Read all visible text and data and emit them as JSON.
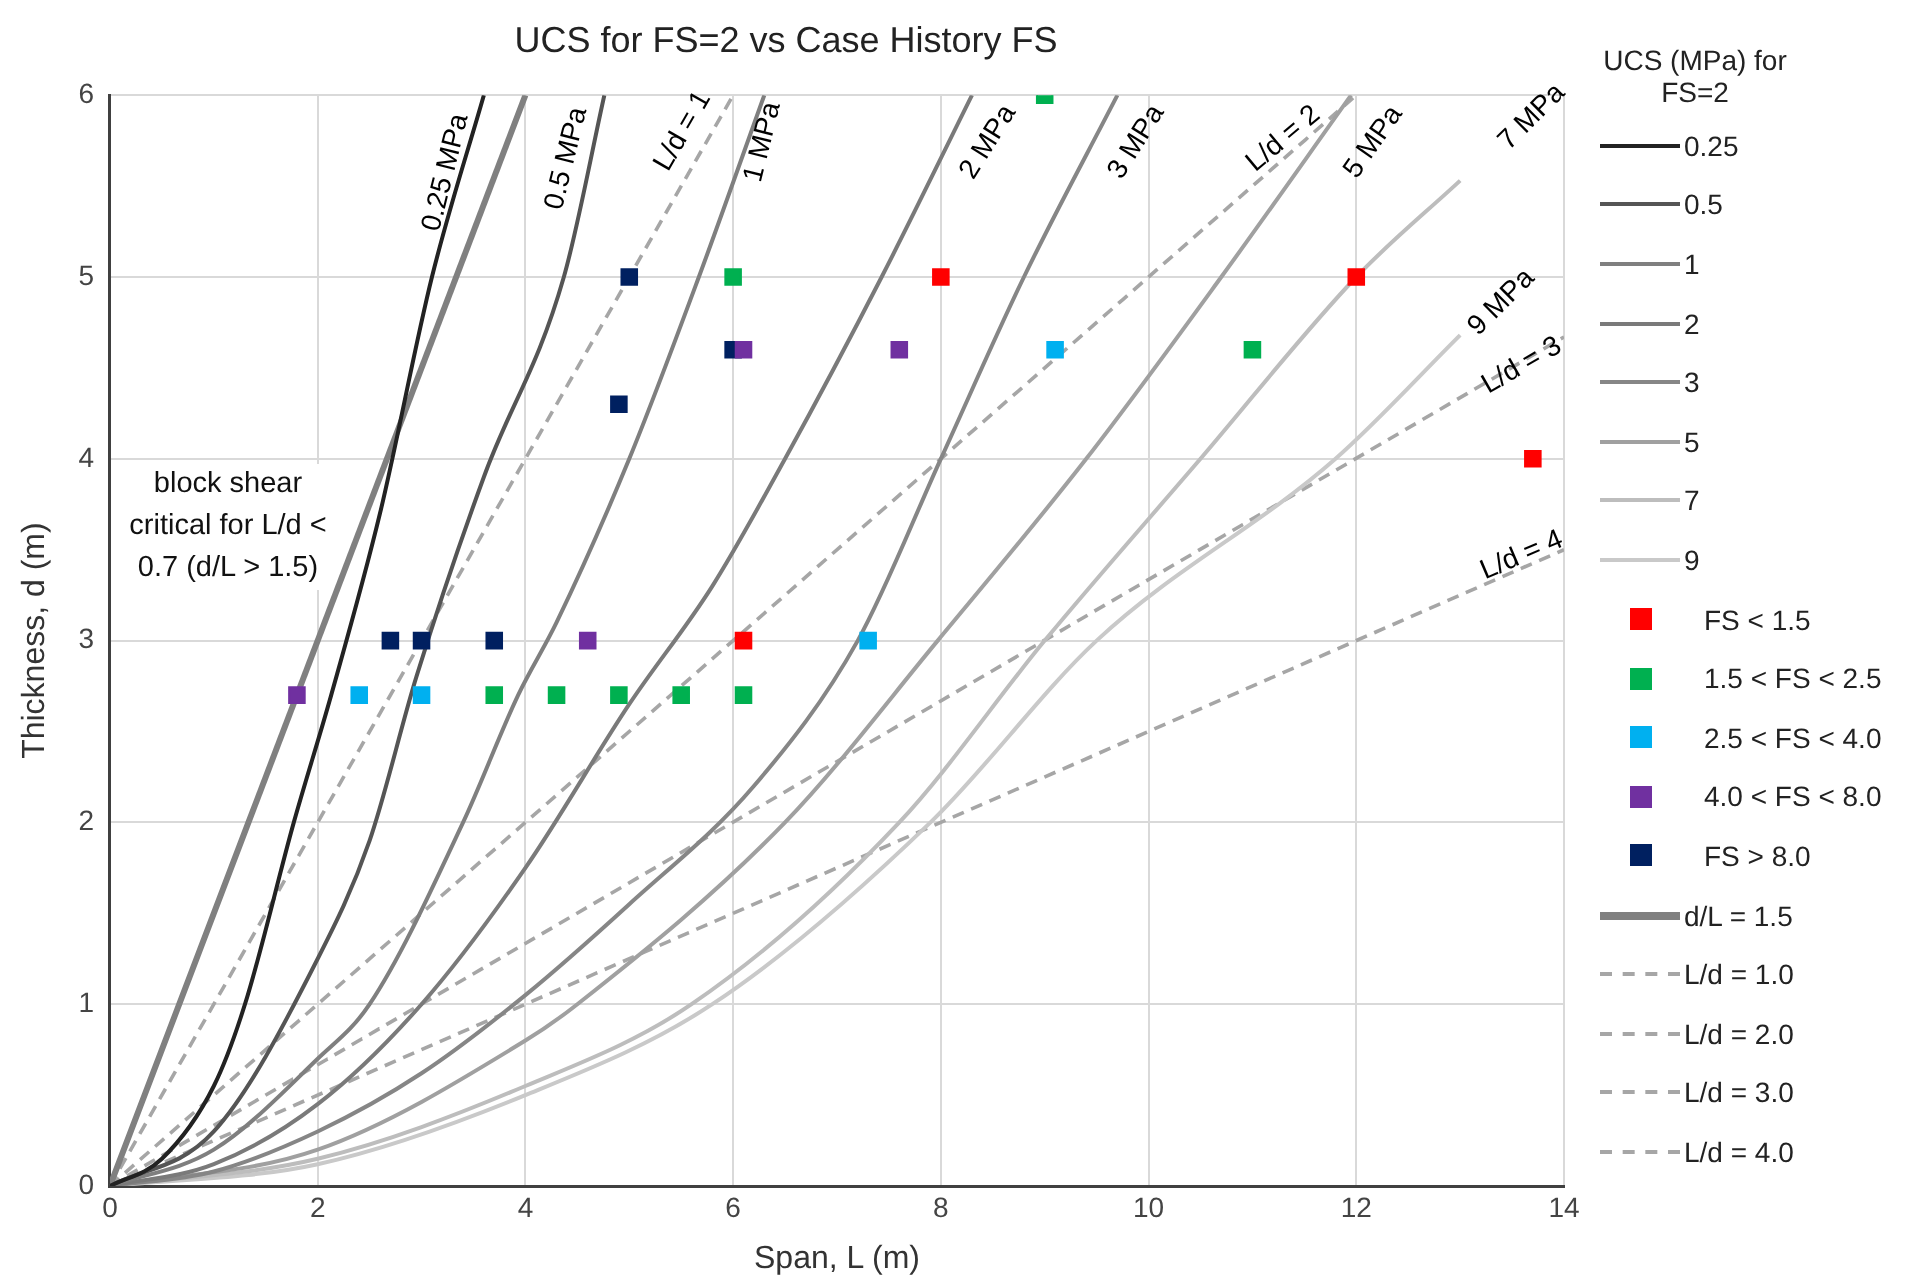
{
  "chart_data": {
    "type": "line",
    "title": "UCS for FS=2 vs Case History FS",
    "xlabel": "Span, L (m)",
    "ylabel": "Thickness, d (m)",
    "legend_title": "UCS (MPa) for FS=2",
    "legend": "right",
    "grid": true,
    "xlim": [
      0,
      14
    ],
    "xticks": [
      0,
      2,
      4,
      6,
      8,
      10,
      12,
      14
    ],
    "ylim": [
      0,
      6
    ],
    "yticks": [
      0,
      1,
      2,
      3,
      4,
      5,
      6
    ],
    "series": [
      {
        "name": "0.25",
        "color": "#222222",
        "line_style": "solid",
        "marker": "none",
        "x": [
          0,
          0.5,
          1,
          1.3,
          1.77,
          2.13,
          2.6,
          3.1,
          3.6
        ],
        "values": [
          0,
          0.15,
          0.55,
          1,
          2,
          2.7,
          3.7,
          5,
          6
        ]
      },
      {
        "name": "0.5",
        "color": "#555555",
        "line_style": "solid",
        "marker": "none",
        "x": [
          0,
          1,
          2,
          2.5,
          2.95,
          3.6,
          4.37,
          4.76
        ],
        "values": [
          0,
          0.3,
          1.25,
          1.9,
          2.8,
          3.9,
          5,
          6
        ]
      },
      {
        "name": "1",
        "color": "#7f7f7f",
        "line_style": "solid",
        "marker": "none",
        "x": [
          0,
          1,
          2,
          2.5,
          3.4,
          3.93,
          4.3,
          5,
          5.67,
          6.3
        ],
        "values": [
          0,
          0.2,
          0.7,
          1,
          2,
          2.7,
          3.1,
          4,
          5,
          6
        ]
      },
      {
        "name": "2",
        "color": "#7a7a7a",
        "line_style": "solid",
        "marker": "none",
        "x": [
          0,
          1,
          2,
          3,
          4,
          5,
          5.8,
          6.5,
          7.43,
          8.3
        ],
        "values": [
          0,
          0.12,
          0.45,
          1,
          1.75,
          2.65,
          3.3,
          4,
          5,
          6
        ]
      },
      {
        "name": "3",
        "color": "#868686",
        "line_style": "solid",
        "marker": "none",
        "x": [
          0,
          1,
          2,
          3,
          4,
          5,
          6.2,
          7.2,
          8,
          8.8,
          9.7
        ],
        "values": [
          0,
          0.08,
          0.3,
          0.62,
          1.05,
          1.55,
          2.2,
          3,
          4,
          5,
          6
        ]
      },
      {
        "name": "5",
        "color": "#a0a0a0",
        "line_style": "solid",
        "marker": "none",
        "x": [
          0,
          2,
          4,
          4.5,
          6.5,
          7.97,
          9.4,
          10.7,
          11.95
        ],
        "values": [
          0,
          0.2,
          0.8,
          1,
          2,
          3,
          4,
          5,
          6
        ]
      },
      {
        "name": "7",
        "color": "#bdbdbd",
        "line_style": "solid",
        "marker": "none",
        "x": [
          0,
          2,
          4,
          5.6,
          7.6,
          9,
          10.5,
          12,
          13
        ],
        "values": [
          0,
          0.15,
          0.55,
          1,
          2,
          3,
          4,
          5,
          5.53
        ]
      },
      {
        "name": "9",
        "color": "#c9c9c9",
        "line_style": "solid",
        "marker": "none",
        "x": [
          0,
          2,
          4,
          5.8,
          7.9,
          9.5,
          11.8,
          13
        ],
        "values": [
          0,
          0.12,
          0.5,
          1,
          2,
          3,
          4,
          4.68
        ]
      },
      {
        "name": "FS  < 1.5",
        "type": "scatter",
        "color": "#ff0000",
        "marker": "square",
        "x": [
          6.1,
          8,
          12,
          13.7
        ],
        "values": [
          3,
          5,
          5,
          4
        ]
      },
      {
        "name": "1.5 < FS < 2.5",
        "type": "scatter",
        "color": "#00b050",
        "marker": "square",
        "x": [
          6,
          9,
          11,
          3.7,
          4.3,
          4.9,
          5.5,
          6.1
        ],
        "values": [
          5,
          6,
          4.6,
          2.7,
          2.7,
          2.7,
          2.7,
          2.7
        ]
      },
      {
        "name": "2.5 < FS < 4.0",
        "type": "scatter",
        "color": "#00b0f0",
        "marker": "square",
        "x": [
          9.1,
          7.3,
          2.4,
          3
        ],
        "values": [
          4.6,
          3,
          2.7,
          2.7
        ]
      },
      {
        "name": "4.0 < FS < 8.0",
        "type": "scatter",
        "color": "#7030a0",
        "marker": "square",
        "x": [
          6.1,
          7.6,
          4.6,
          1.8
        ],
        "values": [
          4.6,
          4.6,
          3,
          2.7
        ]
      },
      {
        "name": "FS > 8.0",
        "type": "scatter",
        "color": "#002060",
        "marker": "square",
        "x": [
          5,
          6,
          4.9,
          2.7,
          3,
          3.7
        ],
        "values": [
          5,
          4.6,
          4.3,
          3,
          3,
          3
        ]
      },
      {
        "name": "d/L = 1.5",
        "color": "#808080",
        "line_style": "solid",
        "marker": "none",
        "x": [
          0,
          4
        ],
        "values": [
          0,
          6
        ]
      },
      {
        "name": "L/d = 1.0",
        "color": "#a6a6a6",
        "line_style": "dashed",
        "marker": "none",
        "x": [
          0,
          6
        ],
        "values": [
          0,
          6
        ]
      },
      {
        "name": "L/d = 2.0",
        "color": "#a6a6a6",
        "line_style": "dashed",
        "marker": "none",
        "x": [
          0,
          12
        ],
        "values": [
          0,
          6
        ]
      },
      {
        "name": "L/d = 3.0",
        "color": "#a6a6a6",
        "line_style": "dashed",
        "marker": "none",
        "x": [
          0,
          14
        ],
        "values": [
          0,
          4.67
        ]
      },
      {
        "name": "L/d = 4.0",
        "color": "#a6a6a6",
        "line_style": "dashed",
        "marker": "none",
        "x": [
          0,
          14
        ],
        "values": [
          0,
          3.5
        ]
      }
    ],
    "annotations": [
      "0.25 MPa",
      "0.5 MPa",
      "L/d = 1",
      "1 MPa",
      "2 MPa",
      "3 MPa",
      "L/d = 2",
      "5 MPa",
      "7 MPa",
      "9 MPa",
      "L/d = 3",
      "L/d = 4",
      "block shear critical for L/d < 0.7 (d/L > 1.5)"
    ]
  }
}
